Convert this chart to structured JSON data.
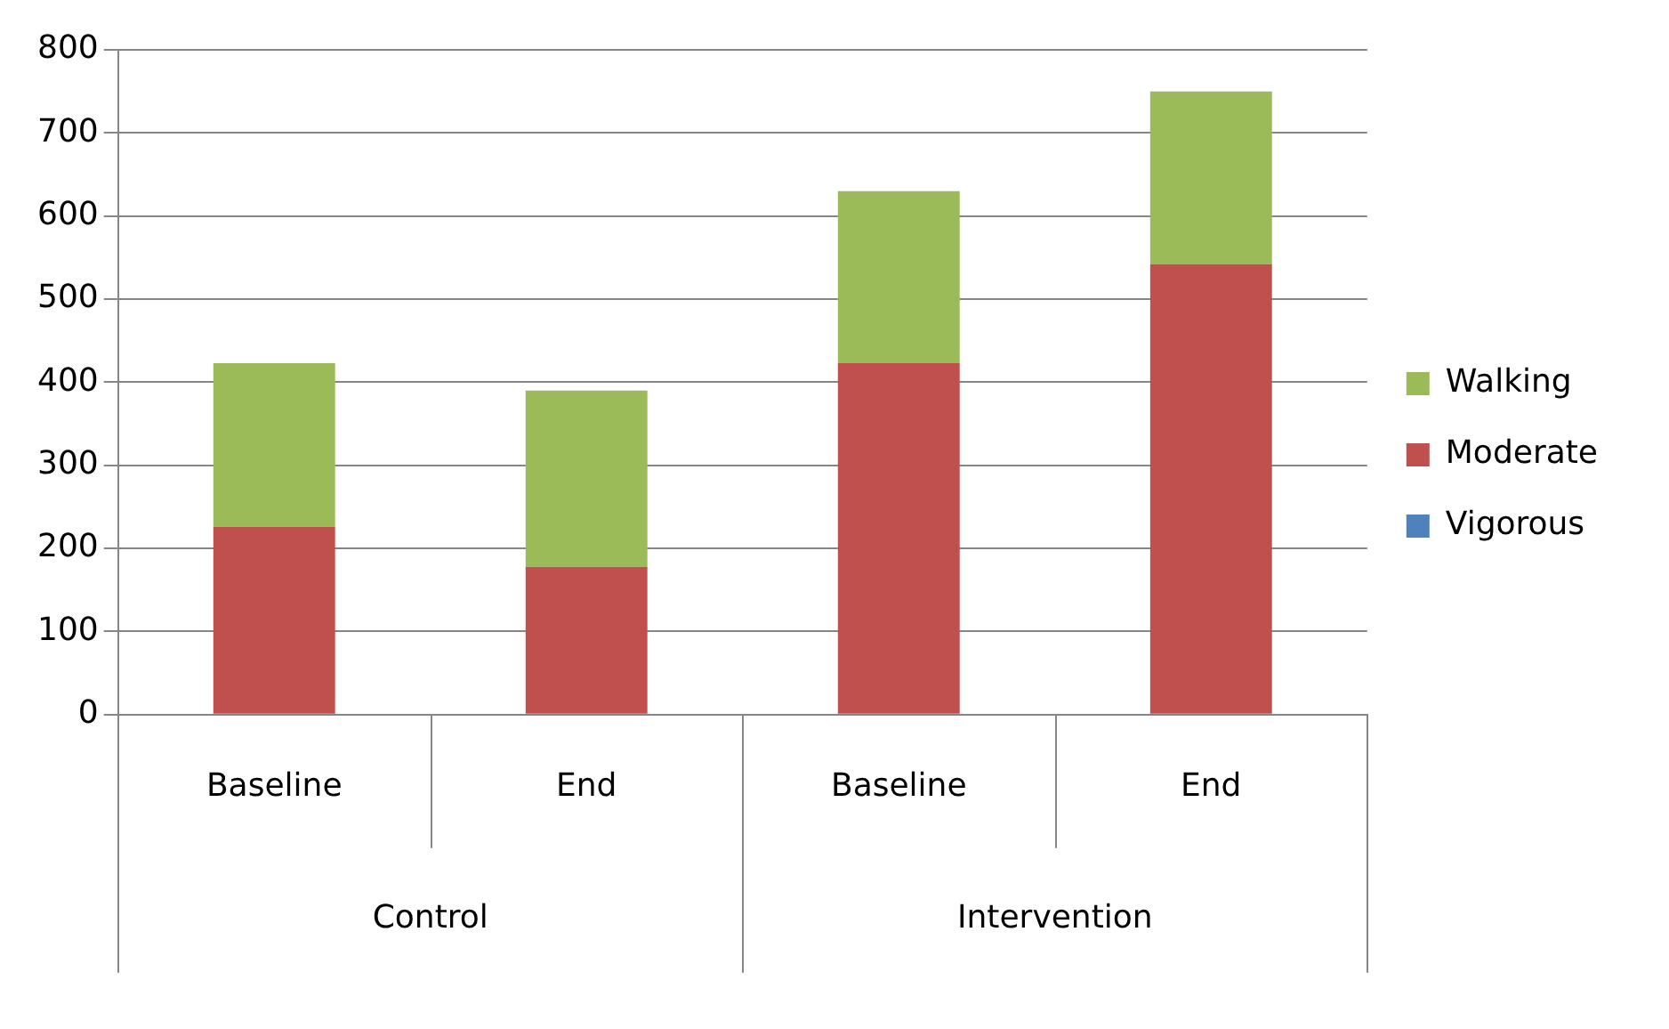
{
  "chart_data": {
    "type": "bar",
    "stacked": true,
    "categories": [
      "Baseline",
      "End",
      "Baseline",
      "End"
    ],
    "series": [
      {
        "name": "Vigorous",
        "color": "#4f81bd",
        "values": [
          0,
          0,
          0,
          0
        ]
      },
      {
        "name": "Moderate",
        "color": "#c0504d",
        "values": [
          226,
          178,
          423,
          542
        ]
      },
      {
        "name": "Walking",
        "color": "#9bbb59",
        "values": [
          197,
          212,
          207,
          208
        ]
      }
    ],
    "annotations": [
      "Control",
      "Intervention"
    ],
    "ylim": [
      0,
      800
    ],
    "yticks": [
      0,
      100,
      200,
      300,
      400,
      500,
      600,
      700,
      800
    ],
    "grid": "y",
    "legend": "right"
  }
}
